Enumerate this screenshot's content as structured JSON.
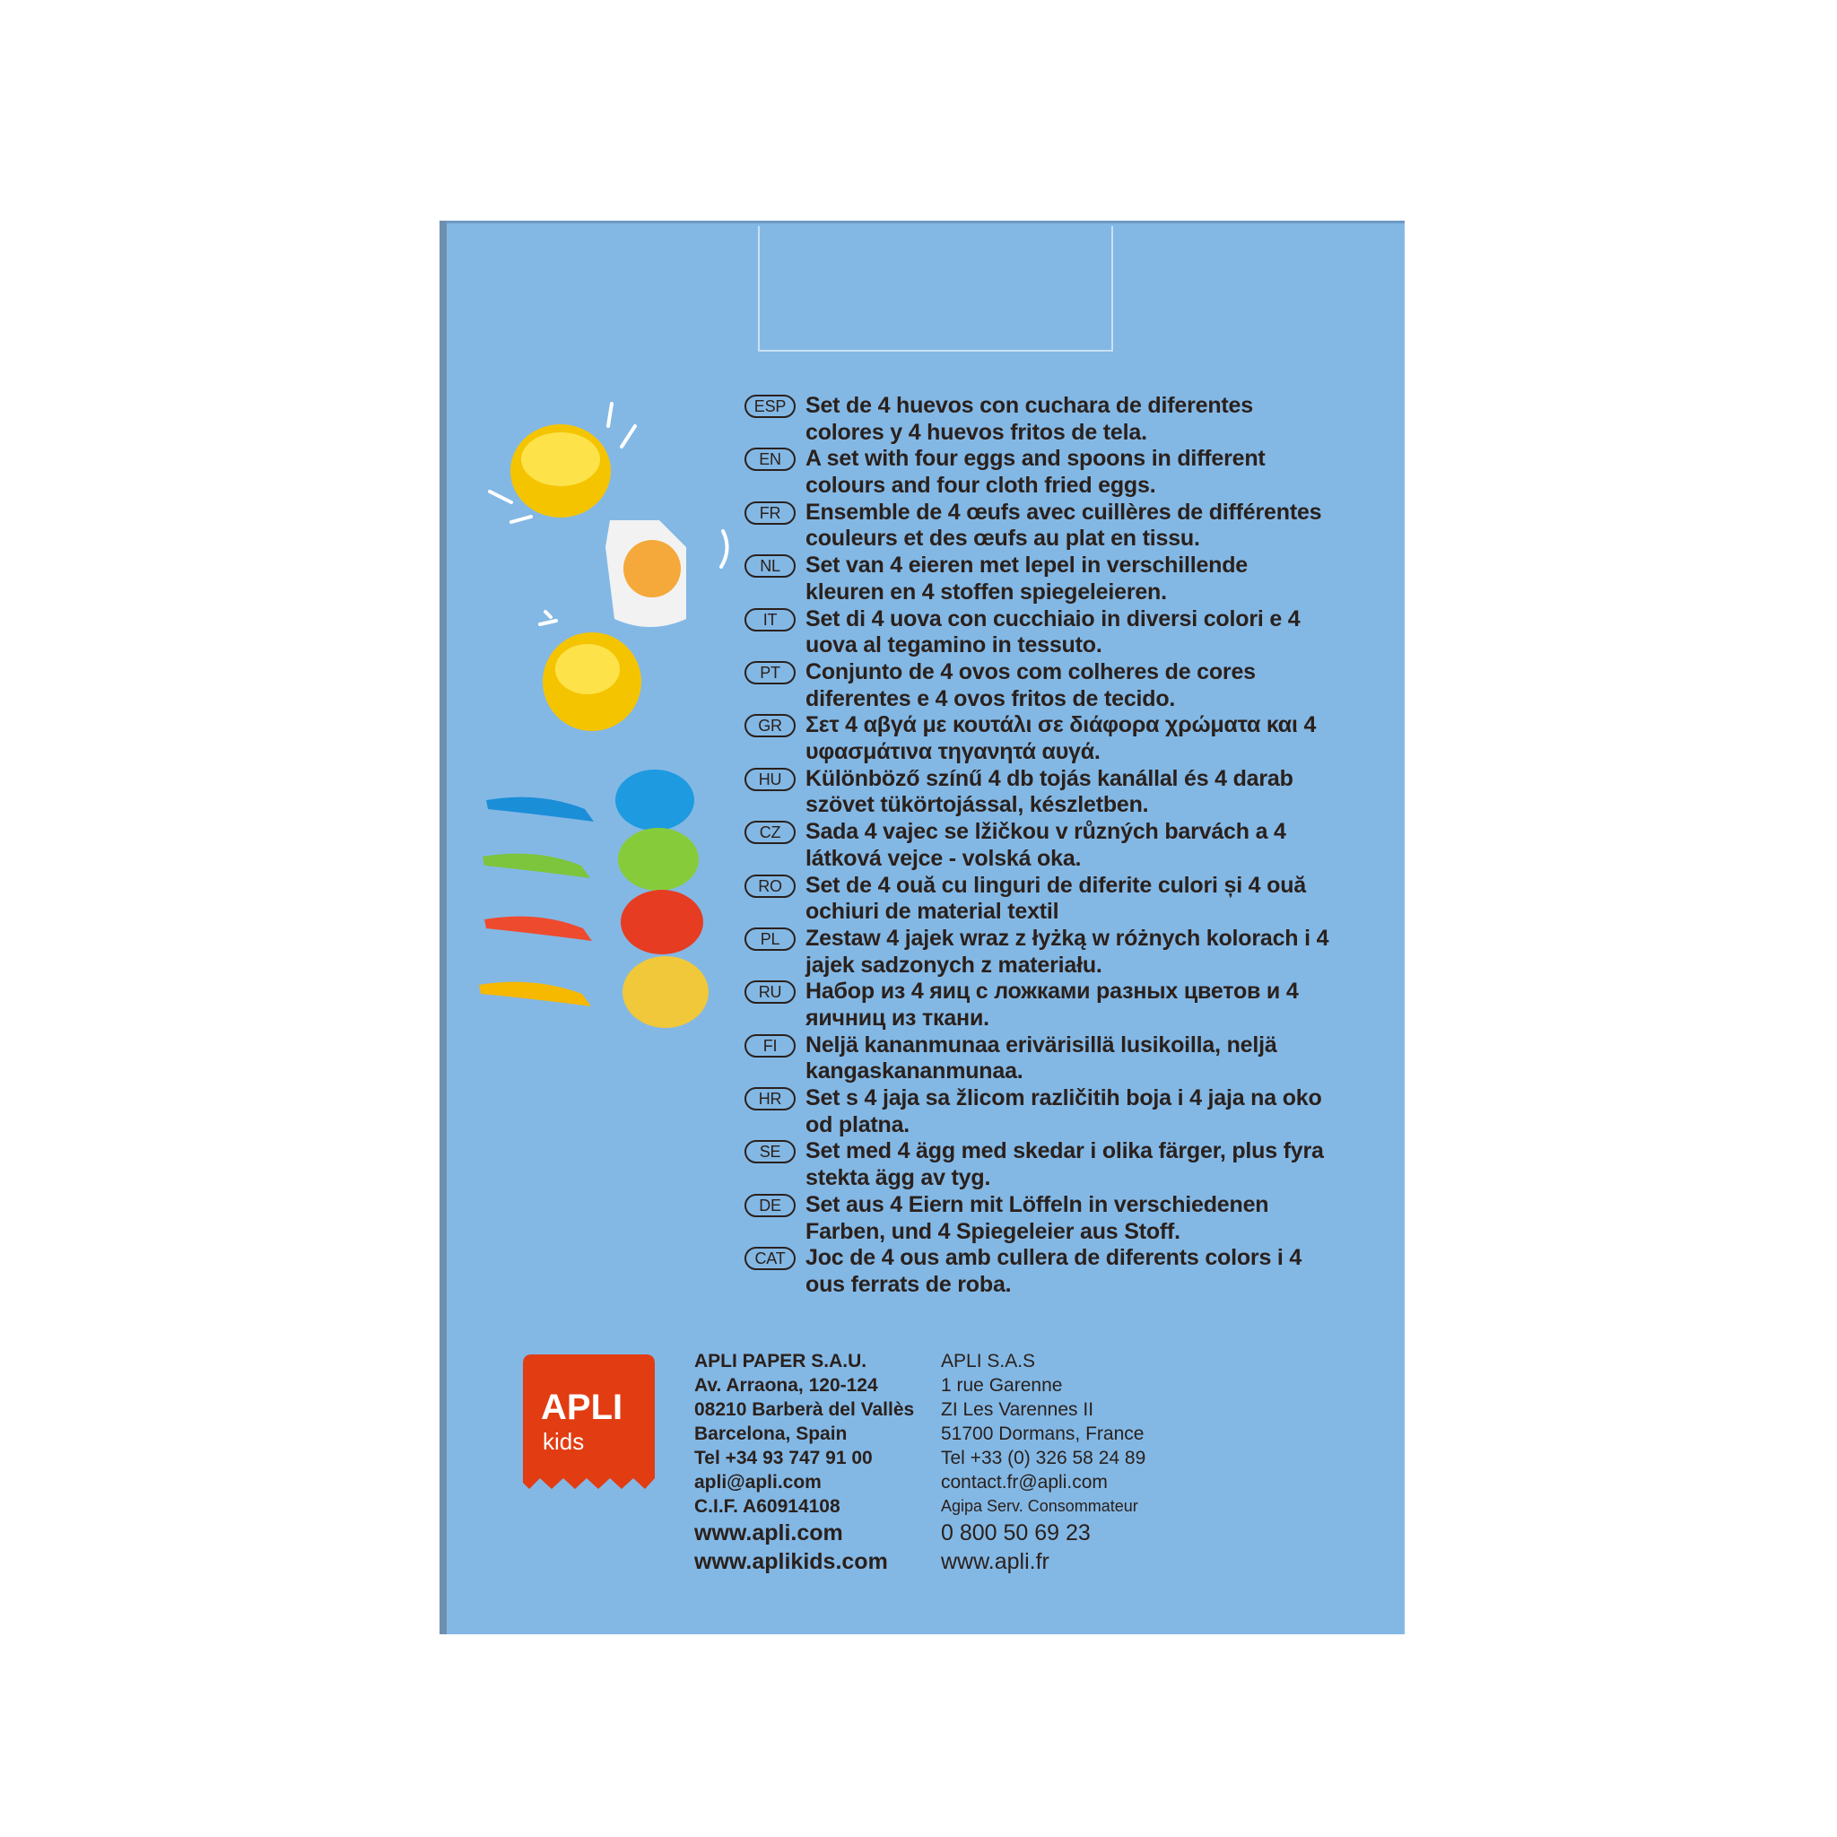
{
  "languages": [
    {
      "code": "ESP",
      "lines": [
        "Set de 4 huevos con cuchara de diferentes",
        "colores y 4 huevos fritos de tela."
      ]
    },
    {
      "code": "EN",
      "lines": [
        "A set with four eggs and spoons in different",
        "colours and four cloth fried eggs."
      ]
    },
    {
      "code": "FR",
      "lines": [
        "Ensemble de 4 œufs avec cuillères de différentes",
        "couleurs et des œufs au plat en tissu."
      ]
    },
    {
      "code": "NL",
      "lines": [
        "Set van 4 eieren met lepel in verschillende",
        "kleuren en 4 stoffen spiegeleieren."
      ]
    },
    {
      "code": "IT",
      "lines": [
        "Set di 4 uova con cucchiaio in diversi colori e 4",
        "uova al tegamino in tessuto."
      ]
    },
    {
      "code": "PT",
      "lines": [
        "Conjunto de 4 ovos com colheres de cores",
        "diferentes e 4 ovos fritos de tecido."
      ]
    },
    {
      "code": "GR",
      "lines": [
        "Σετ 4 αβγά με κουτάλι σε διάφορα χρώματα και 4",
        "υφασμάτινα τηγανητά αυγά."
      ]
    },
    {
      "code": "HU",
      "lines": [
        "Különböző színű 4 db tojás kanállal és 4 darab",
        "szövet tükörtojással, készletben."
      ]
    },
    {
      "code": "CZ",
      "lines": [
        "Sada 4 vajec se lžičkou v různých barvách a 4",
        "látková vejce - volská oka."
      ]
    },
    {
      "code": "RO",
      "lines": [
        "Set de 4 ouă cu linguri de diferite culori și 4 ouă",
        "ochiuri de material textil"
      ]
    },
    {
      "code": "PL",
      "lines": [
        "Zestaw 4 jajek wraz z łyżką w różnych kolorach i 4",
        "jajek sadzonych z materiału."
      ]
    },
    {
      "code": "RU",
      "lines": [
        "Набор из 4 яиц с ложками разных цветов и 4",
        "яичниц из ткани."
      ]
    },
    {
      "code": "FI",
      "lines": [
        "Neljä kananmunaa erivärisillä lusikoilla, neljä",
        "kangaskananmunaa."
      ]
    },
    {
      "code": "HR",
      "lines": [
        "Set s 4 jaja sa žlicom različitih boja i 4 jaja na oko",
        "od platna."
      ]
    },
    {
      "code": "SE",
      "lines": [
        "Set med 4 ägg med skedar i olika färger, plus fyra",
        "stekta ägg av tyg."
      ]
    },
    {
      "code": "DE",
      "lines": [
        "Set aus 4 Eiern mit Löffeln in verschiedenen",
        "Farben, und 4 Spiegeleier aus Stoff."
      ]
    },
    {
      "code": "CAT",
      "lines": [
        "Joc de 4 ous amb cullera de diferents colors i 4",
        "ous ferrats de roba."
      ]
    }
  ],
  "logo": {
    "brand": "APLI",
    "sub": "kids",
    "color": "#e23c12"
  },
  "address_es": [
    "APLI PAPER S.A.U.",
    "Av. Arraona, 120-124",
    "08210 Barberà del Vallès",
    "Barcelona, Spain",
    "Tel +34 93 747 91 00",
    "apli@apli.com",
    "C.I.F. A60914108",
    "www.apli.com",
    "www.aplikids.com"
  ],
  "address_fr": [
    "APLI S.A.S",
    "1 rue Garenne",
    "ZI Les Varennes II",
    "51700 Dormans, France",
    "Tel +33 (0) 326 58 24 89",
    "contact.fr@apli.com",
    "Agipa Serv. Consommateur",
    "0 800 50 69 23",
    "www.apli.fr"
  ],
  "colors": {
    "box": "#83b8e5",
    "text": "#2a201c"
  }
}
